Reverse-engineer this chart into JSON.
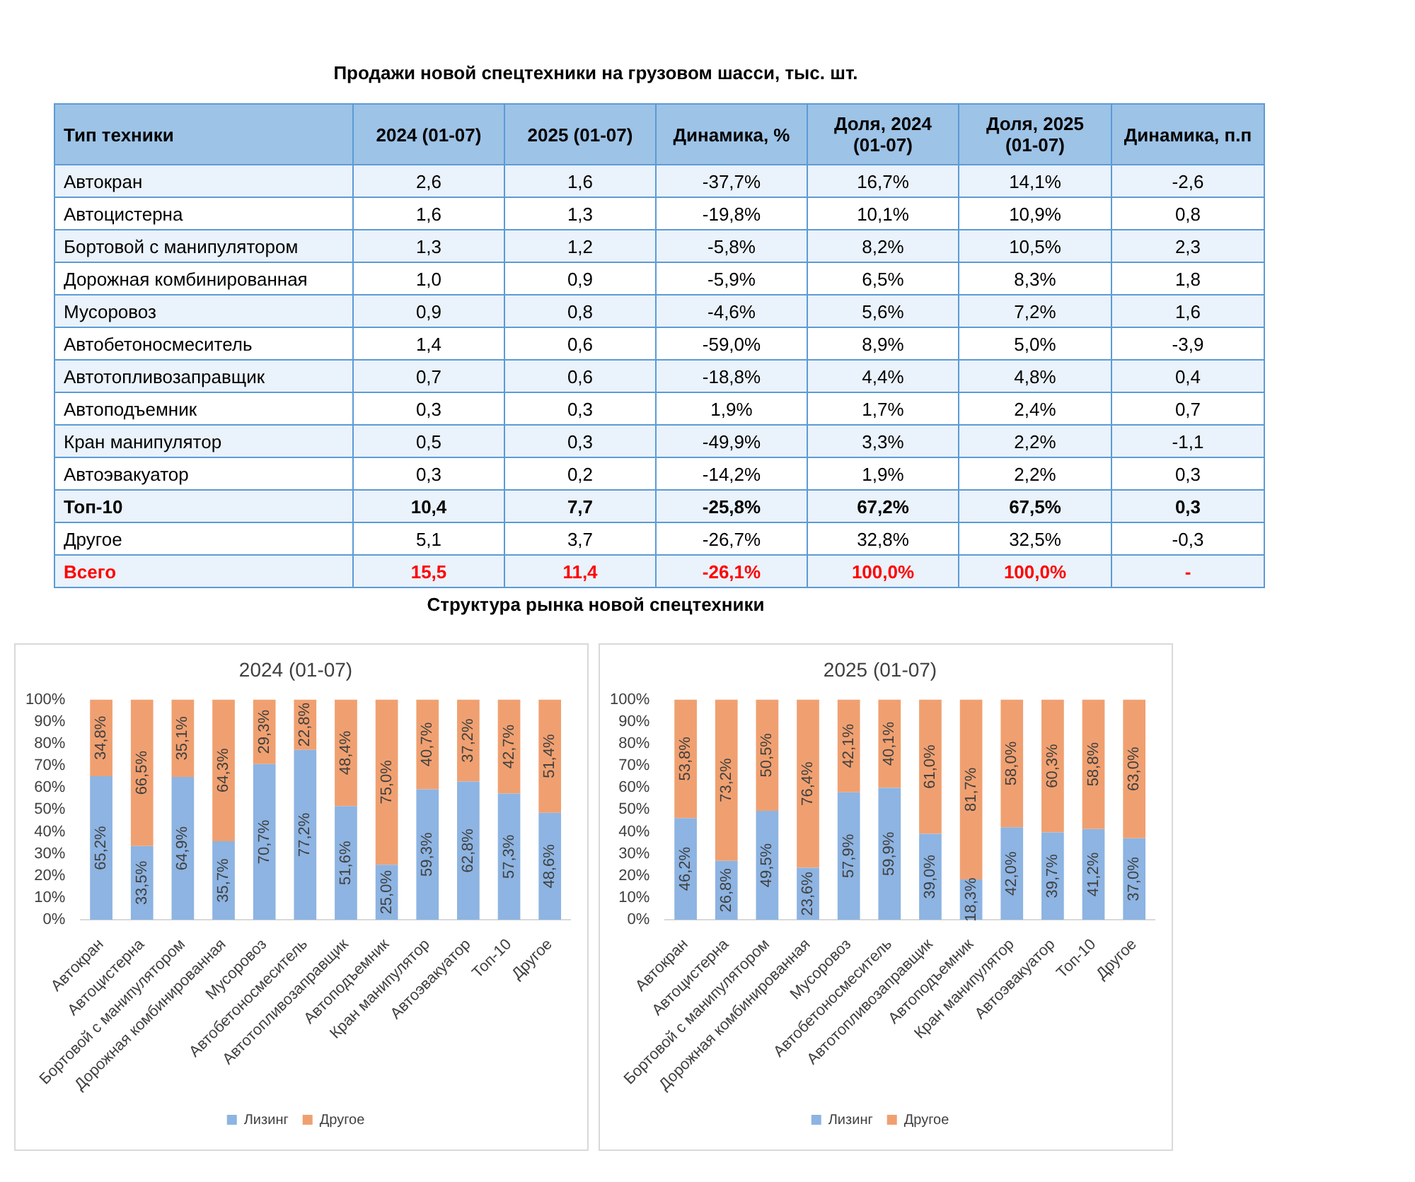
{
  "chart_data": [
    {
      "type": "other",
      "title": "Продажи новой спецтехники на грузовом шасси, тыс. шт.",
      "categories": [
        "Тип техники",
        "2024 (01-07)",
        "2025 (01-07)",
        "Динамика, %",
        "Доля, 2024 (01-07)",
        "Доля, 2025 (01-07)",
        "Динамика, п.п"
      ],
      "y_categories": [
        "Автокран",
        "Автоцистерна",
        "Бортовой с манипулятором",
        "Дорожная комбинированная",
        "Мусоровоз",
        "Автобетоносмеситель",
        "Автотопливозаправщик",
        "Автоподъемник",
        "Кран манипулятор",
        "Автоэвакуатор",
        "Топ-10",
        "Другое",
        "Всего"
      ],
      "cell_labels": [
        [
          "2,6",
          "1,6",
          "-37,7%",
          "16,7%",
          "14,1%",
          "-2,6"
        ],
        [
          "1,6",
          "1,3",
          "-19,8%",
          "10,1%",
          "10,9%",
          "0,8"
        ],
        [
          "1,3",
          "1,2",
          "-5,8%",
          "8,2%",
          "10,5%",
          "2,3"
        ],
        [
          "1,0",
          "0,9",
          "-5,9%",
          "6,5%",
          "8,3%",
          "1,8"
        ],
        [
          "0,9",
          "0,8",
          "-4,6%",
          "5,6%",
          "7,2%",
          "1,6"
        ],
        [
          "1,4",
          "0,6",
          "-59,0%",
          "8,9%",
          "5,0%",
          "-3,9"
        ],
        [
          "0,7",
          "0,6",
          "-18,8%",
          "4,4%",
          "4,8%",
          "0,4"
        ],
        [
          "0,3",
          "0,3",
          "1,9%",
          "1,7%",
          "2,4%",
          "0,7"
        ],
        [
          "0,5",
          "0,3",
          "-49,9%",
          "3,3%",
          "2,2%",
          "-1,1"
        ],
        [
          "0,3",
          "0,2",
          "-14,2%",
          "1,9%",
          "2,2%",
          "0,3"
        ],
        [
          "10,4",
          "7,7",
          "-25,8%",
          "67,2%",
          "67,5%",
          "0,3"
        ],
        [
          "5,1",
          "3,7",
          "-26,7%",
          "32,8%",
          "32,5%",
          "-0,3"
        ],
        [
          "15,5",
          "11,4",
          "-26,1%",
          "100,0%",
          "100,0%",
          "-"
        ]
      ]
    },
    {
      "type": "bar",
      "subtitle": "Структура рынка новой спецтехники",
      "title": "2024 (01-07)",
      "stacked": true,
      "legend": "bottom",
      "grid": false,
      "categories": [
        "Автокран",
        "Автоцистерна",
        "Бортовой с манипулятором",
        "Дорожная комбинированная",
        "Мусоровоз",
        "Автобетоносмеситель",
        "Автотопливозаправщик",
        "Автоподъемник",
        "Кран манипулятор",
        "Автоэвакуатор",
        "Топ-10",
        "Другое"
      ],
      "ylim": [
        0,
        100
      ],
      "yticks": [
        {
          "value": 0,
          "label": "0%"
        },
        {
          "value": 10,
          "label": "10%"
        },
        {
          "value": 20,
          "label": "20%"
        },
        {
          "value": 30,
          "label": "30%"
        },
        {
          "value": 40,
          "label": "40%"
        },
        {
          "value": 50,
          "label": "50%"
        },
        {
          "value": 60,
          "label": "60%"
        },
        {
          "value": 70,
          "label": "70%"
        },
        {
          "value": 80,
          "label": "80%"
        },
        {
          "value": 90,
          "label": "90%"
        },
        {
          "value": 100,
          "label": "100%"
        }
      ],
      "series": [
        {
          "name": "Лизинг",
          "color": "#8db4e2",
          "values": [
            65.2,
            33.5,
            64.9,
            35.7,
            70.7,
            77.2,
            51.6,
            25.0,
            59.3,
            62.8,
            57.3,
            48.6
          ],
          "value_labels": [
            "65,2%",
            "33,5%",
            "64,9%",
            "35,7%",
            "70,7%",
            "77,2%",
            "51,6%",
            "25,0%",
            "59,3%",
            "62,8%",
            "57,3%",
            "48,6%"
          ]
        },
        {
          "name": "Другое",
          "color": "#f0a070",
          "values": [
            34.8,
            66.5,
            35.1,
            64.3,
            29.3,
            22.8,
            48.4,
            75.0,
            40.7,
            37.2,
            42.7,
            51.4
          ],
          "value_labels": [
            "34,8%",
            "66,5%",
            "35,1%",
            "64,3%",
            "29,3%",
            "22,8%",
            "48,4%",
            "75,0%",
            "40,7%",
            "37,2%",
            "42,7%",
            "51,4%"
          ]
        }
      ]
    },
    {
      "type": "bar",
      "title": "2025 (01-07)",
      "stacked": true,
      "legend": "bottom",
      "grid": false,
      "categories": [
        "Автокран",
        "Автоцистерна",
        "Бортовой с манипулятором",
        "Дорожная комбинированная",
        "Мусоровоз",
        "Автобетоносмеситель",
        "Автотопливозаправщик",
        "Автоподъемник",
        "Кран манипулятор",
        "Автоэвакуатор",
        "Топ-10",
        "Другое"
      ],
      "ylim": [
        0,
        100
      ],
      "yticks": [
        {
          "value": 0,
          "label": "0%"
        },
        {
          "value": 10,
          "label": "10%"
        },
        {
          "value": 20,
          "label": "20%"
        },
        {
          "value": 30,
          "label": "30%"
        },
        {
          "value": 40,
          "label": "40%"
        },
        {
          "value": 50,
          "label": "50%"
        },
        {
          "value": 60,
          "label": "60%"
        },
        {
          "value": 70,
          "label": "70%"
        },
        {
          "value": 80,
          "label": "80%"
        },
        {
          "value": 90,
          "label": "90%"
        },
        {
          "value": 100,
          "label": "100%"
        }
      ],
      "series": [
        {
          "name": "Лизинг",
          "color": "#8db4e2",
          "values": [
            46.2,
            26.8,
            49.5,
            23.6,
            57.9,
            59.9,
            39.0,
            18.3,
            42.0,
            39.7,
            41.2,
            37.0
          ],
          "value_labels": [
            "46,2%",
            "26,8%",
            "49,5%",
            "23,6%",
            "57,9%",
            "59,9%",
            "39,0%",
            "18,3%",
            "42,0%",
            "39,7%",
            "41,2%",
            "37,0%"
          ]
        },
        {
          "name": "Другое",
          "color": "#f0a070",
          "values": [
            53.8,
            73.2,
            50.5,
            76.4,
            42.1,
            40.1,
            61.0,
            81.7,
            58.0,
            60.3,
            58.8,
            63.0
          ],
          "value_labels": [
            "53,8%",
            "73,2%",
            "50,5%",
            "76,4%",
            "42,1%",
            "40,1%",
            "61,0%",
            "81,7%",
            "58,0%",
            "60,3%",
            "58,8%",
            "63,0%"
          ]
        }
      ]
    }
  ]
}
